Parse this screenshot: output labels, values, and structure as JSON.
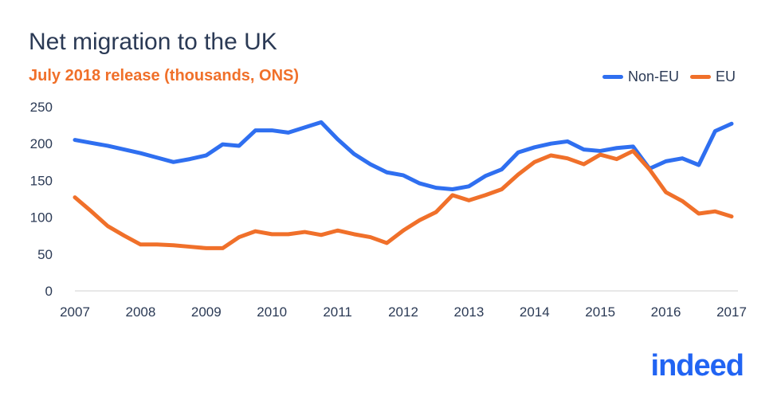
{
  "chart_data": {
    "type": "line",
    "title": "Net migration to the UK",
    "subtitle": "July 2018 release (thousands, ONS)",
    "x": [
      2007,
      2007.25,
      2007.5,
      2007.75,
      2008,
      2008.25,
      2008.5,
      2008.75,
      2009,
      2009.25,
      2009.5,
      2009.75,
      2010,
      2010.25,
      2010.5,
      2010.75,
      2011,
      2011.25,
      2011.5,
      2011.75,
      2012,
      2012.25,
      2012.5,
      2012.75,
      2013,
      2013.25,
      2013.5,
      2013.75,
      2014,
      2014.25,
      2014.5,
      2014.75,
      2015,
      2015.25,
      2015.5,
      2015.75,
      2016,
      2016.25,
      2016.5,
      2016.75,
      2017
    ],
    "series": [
      {
        "name": "Non-EU",
        "color": "#2f6ff0",
        "values": [
          205,
          201,
          197,
          192,
          187,
          181,
          175,
          179,
          184,
          199,
          197,
          218,
          218,
          215,
          222,
          229,
          206,
          186,
          172,
          161,
          157,
          146,
          140,
          138,
          142,
          156,
          165,
          188,
          195,
          200,
          203,
          192,
          190,
          194,
          196,
          166,
          176,
          180,
          171,
          217,
          227
        ]
      },
      {
        "name": "EU",
        "color": "#f0702a",
        "values": [
          127,
          108,
          88,
          75,
          63,
          63,
          62,
          60,
          58,
          58,
          73,
          81,
          77,
          77,
          80,
          76,
          82,
          77,
          73,
          65,
          82,
          96,
          107,
          130,
          123,
          130,
          138,
          158,
          175,
          184,
          180,
          172,
          185,
          179,
          190,
          165,
          134,
          122,
          105,
          108,
          101
        ]
      }
    ],
    "xticks": [
      "2007",
      "2008",
      "2009",
      "2010",
      "2011",
      "2012",
      "2013",
      "2014",
      "2015",
      "2016",
      "2017"
    ],
    "yticks": [
      "0",
      "50",
      "100",
      "150",
      "200",
      "250"
    ],
    "xlim": [
      2007,
      2017
    ],
    "ylim": [
      0,
      250
    ],
    "grid": false,
    "legend_position": "top-right"
  },
  "logo": "indeed"
}
